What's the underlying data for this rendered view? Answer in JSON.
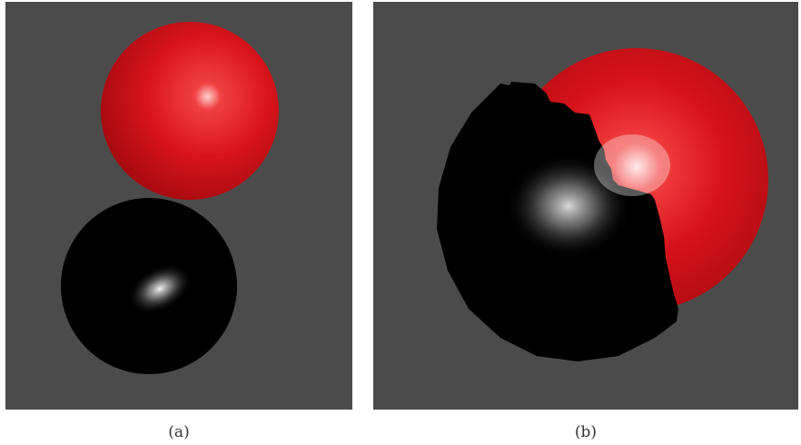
{
  "panels": [
    {
      "id": "a",
      "caption": "(a)"
    },
    {
      "id": "b",
      "caption": "(b)"
    }
  ],
  "colors": {
    "background": "#4b4b4b",
    "red_sphere": "#e8191f",
    "black_sphere": "#000000",
    "highlight": "#ffffff"
  }
}
